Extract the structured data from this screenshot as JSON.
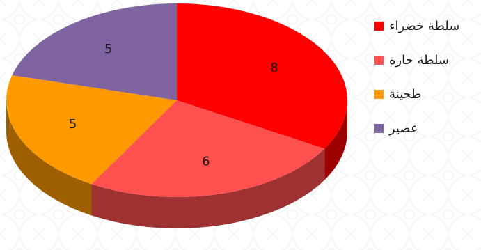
{
  "chart_data": {
    "type": "pie",
    "style": "3d",
    "title": "",
    "categories": [
      "سلطة خضراء",
      "سلطة حارة",
      "طحينة",
      "عصير"
    ],
    "values": [
      8,
      6,
      5,
      5
    ],
    "data_labels": [
      "8",
      "6",
      "5",
      "5"
    ],
    "colors": [
      "#ff0000",
      "#ff5050",
      "#ff9900",
      "#8064a2"
    ],
    "legend_placement": "right"
  }
}
